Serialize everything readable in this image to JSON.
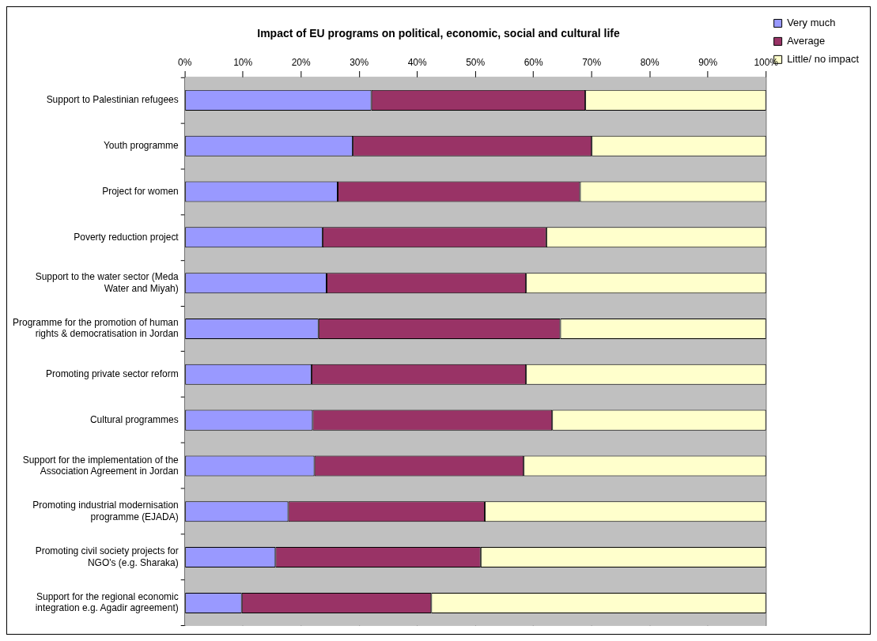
{
  "chart_data": {
    "type": "bar",
    "orientation": "horizontal",
    "stacked": true,
    "title": "Impact of EU programs on political, economic, social and cultural life",
    "categories": [
      "Support to Palestinian refugees",
      "Youth programme",
      "Project for women",
      "Poverty reduction project",
      "Support to the water sector (Meda Water and Miyah)",
      "Programme for the promotion of human rights & democratisation in Jordan",
      "Promoting private sector reform",
      "Cultural programmes",
      "Support for the implementation of the Association Agreement in Jordan",
      "Promoting industrial modernisation programme (EJADA)",
      "Promoting civil society projects for NGO's (e.g. Sharaka)",
      "Support for the regional economic integration e.g. Agadir agreement)"
    ],
    "series": [
      {
        "name": "Very much",
        "color": "#9999ff",
        "values": [
          32.1,
          28.9,
          26.3,
          23.7,
          24.4,
          23,
          21.8,
          22,
          22.3,
          17.8,
          15.6,
          9.8
        ]
      },
      {
        "name": "Average",
        "color": "#993366",
        "values": [
          36.8,
          41.1,
          41.7,
          38.5,
          34.3,
          41.6,
          36.9,
          41.2,
          36,
          33.8,
          35.3,
          32.6
        ]
      },
      {
        "name": "Little/ no impact",
        "color": "#ffffcc",
        "values": [
          31.1,
          30,
          32,
          37.8,
          41.3,
          35.4,
          41.3,
          36.8,
          41.7,
          48.4,
          49.1,
          57.6
        ]
      }
    ],
    "xlim": [
      0,
      100
    ],
    "xticks": [
      {
        "value": 0,
        "label": "0%"
      },
      {
        "value": 10,
        "label": "10%"
      },
      {
        "value": 20,
        "label": "20%"
      },
      {
        "value": 30,
        "label": "30%"
      },
      {
        "value": 40,
        "label": "40%"
      },
      {
        "value": 50,
        "label": "50%"
      },
      {
        "value": 60,
        "label": "60%"
      },
      {
        "value": 70,
        "label": "70%"
      },
      {
        "value": 80,
        "label": "80%"
      },
      {
        "value": 90,
        "label": "90%"
      },
      {
        "value": 100,
        "label": "100%"
      }
    ],
    "grid": "x",
    "legend": "top right"
  }
}
